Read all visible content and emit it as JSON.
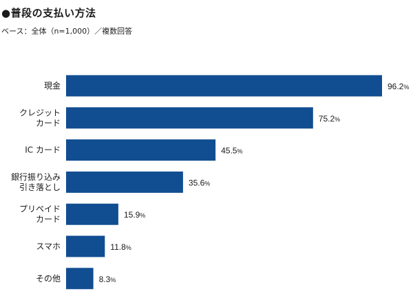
{
  "header": {
    "title": "●普段の支払い方法",
    "subtitle": "ベース：全体（n=1,000）／複数回答"
  },
  "chart_data": {
    "type": "bar",
    "orientation": "horizontal",
    "title": "●普段の支払い方法",
    "subtitle": "ベース：全体（n=1,000）／複数回答",
    "categories": [
      [
        "現金"
      ],
      [
        "クレジット",
        "カード"
      ],
      [
        "IC カード"
      ],
      [
        "銀行振り込み",
        "引き落とし"
      ],
      [
        "プリペイド",
        "カード"
      ],
      [
        "スマホ"
      ],
      [
        "その他"
      ]
    ],
    "values": [
      96.2,
      75.2,
      45.5,
      35.6,
      15.9,
      11.8,
      8.3
    ],
    "unit": "%",
    "xlim": [
      0,
      100
    ],
    "bar_color": "#114d91",
    "grid": false,
    "legend": "none"
  }
}
